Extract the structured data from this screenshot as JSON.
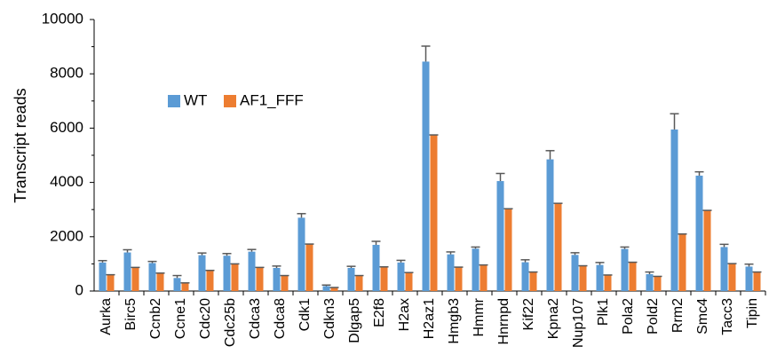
{
  "chart_data": {
    "type": "bar",
    "ylabel": "Transcript reads",
    "xlabel": "",
    "ylim": [
      0,
      10000
    ],
    "yticks": [
      0,
      2000,
      4000,
      6000,
      8000,
      10000
    ],
    "legend_position": "upper-left",
    "categories": [
      "Aurka",
      "Birc5",
      "Ccnb2",
      "Ccne1",
      "Cdc20",
      "Cdc25b",
      "Cdca3",
      "Cdca8",
      "Cdk1",
      "Cdkn3",
      "Dlgap5",
      "E2f8",
      "H2ax",
      "H2az1",
      "Hmgb3",
      "Hmmr",
      "Hnrnpd",
      "Kif22",
      "Kpna2",
      "Nup107",
      "Plk1",
      "Pola2",
      "Pold2",
      "Rrm2",
      "Smc4",
      "Tacc3",
      "Tipin"
    ],
    "series": [
      {
        "name": "WT",
        "color": "#5b9bd5",
        "values": [
          1050,
          1420,
          1030,
          480,
          1320,
          1300,
          1450,
          850,
          2700,
          180,
          850,
          1700,
          1050,
          8450,
          1350,
          1560,
          4050,
          1060,
          4850,
          1330,
          960,
          1550,
          620,
          5950,
          4250,
          1620,
          900
        ],
        "errors": [
          70,
          100,
          60,
          90,
          80,
          80,
          80,
          70,
          150,
          40,
          60,
          130,
          80,
          570,
          90,
          60,
          280,
          90,
          320,
          80,
          90,
          70,
          80,
          580,
          140,
          100,
          90
        ]
      },
      {
        "name": "AF1_FFF",
        "color": "#ed7d31",
        "values": [
          600,
          870,
          660,
          300,
          760,
          1000,
          870,
          570,
          1730,
          130,
          570,
          890,
          680,
          5750,
          880,
          960,
          3030,
          700,
          3230,
          930,
          590,
          1060,
          540,
          2100,
          2970,
          1010,
          700
        ]
      }
    ]
  }
}
